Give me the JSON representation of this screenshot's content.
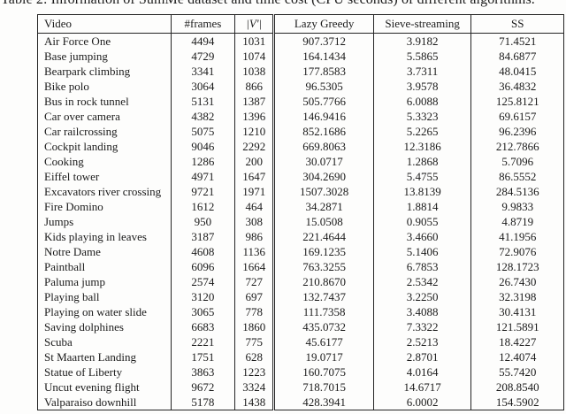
{
  "caption": "Table 2: Information of SumMe dataset and time cost (CPU seconds) of different algorithms.",
  "colors": {
    "text": "#1b1b1b",
    "border": "#242424",
    "background": "#fdfdfc"
  },
  "table": {
    "columns": [
      {
        "key": "video",
        "label": "Video"
      },
      {
        "key": "frames",
        "label": "#frames"
      },
      {
        "key": "v-size",
        "label": "|V′|"
      },
      {
        "key": "lazy-greedy",
        "label": "Lazy Greedy"
      },
      {
        "key": "sieve-streaming",
        "label": "Sieve-streaming"
      },
      {
        "key": "ss",
        "label": "SS"
      }
    ],
    "rows": [
      [
        "Air Force One",
        "4494",
        "1031",
        "907.3712",
        "3.9182",
        "71.4521"
      ],
      [
        "Base jumping",
        "4729",
        "1074",
        "164.1434",
        "5.5865",
        "84.6877"
      ],
      [
        "Bearpark climbing",
        "3341",
        "1038",
        "177.8583",
        "3.7311",
        "48.0415"
      ],
      [
        "Bike polo",
        "3064",
        "866",
        "96.5305",
        "3.9578",
        "36.4832"
      ],
      [
        "Bus in rock tunnel",
        "5131",
        "1387",
        "505.7766",
        "6.0088",
        "125.8121"
      ],
      [
        "Car over camera",
        "4382",
        "1396",
        "146.9416",
        "5.3323",
        "69.6157"
      ],
      [
        "Car railcrossing",
        "5075",
        "1210",
        "852.1686",
        "5.2265",
        "96.2396"
      ],
      [
        "Cockpit landing",
        "9046",
        "2292",
        "669.8063",
        "12.3186",
        "212.7866"
      ],
      [
        "Cooking",
        "1286",
        "200",
        "30.0717",
        "1.2868",
        "5.7096"
      ],
      [
        "Eiffel tower",
        "4971",
        "1647",
        "304.2690",
        "5.4755",
        "86.5552"
      ],
      [
        "Excavators river crossing",
        "9721",
        "1971",
        "1507.3028",
        "13.8139",
        "284.5136"
      ],
      [
        "Fire Domino",
        "1612",
        "464",
        "34.2871",
        "1.8814",
        "9.9833"
      ],
      [
        "Jumps",
        "950",
        "308",
        "15.0508",
        "0.9055",
        "4.8719"
      ],
      [
        "Kids playing in leaves",
        "3187",
        "986",
        "221.4644",
        "3.4660",
        "41.1956"
      ],
      [
        "Notre Dame",
        "4608",
        "1136",
        "169.1235",
        "5.1406",
        "72.9076"
      ],
      [
        "Paintball",
        "6096",
        "1664",
        "763.3255",
        "6.7853",
        "128.1723"
      ],
      [
        "Paluma jump",
        "2574",
        "727",
        "210.8670",
        "2.5342",
        "26.7430"
      ],
      [
        "Playing ball",
        "3120",
        "697",
        "132.7437",
        "3.2250",
        "32.3198"
      ],
      [
        "Playing on water slide",
        "3065",
        "778",
        "111.7358",
        "3.4088",
        "30.4131"
      ],
      [
        "Saving dolphines",
        "6683",
        "1860",
        "435.0732",
        "7.3322",
        "121.5891"
      ],
      [
        "Scuba",
        "2221",
        "775",
        "45.6177",
        "2.5213",
        "18.4227"
      ],
      [
        "St Maarten Landing",
        "1751",
        "628",
        "19.0717",
        "2.8701",
        "12.4074"
      ],
      [
        "Statue of Liberty",
        "3863",
        "1223",
        "160.7075",
        "4.0164",
        "55.7420"
      ],
      [
        "Uncut evening flight",
        "9672",
        "3324",
        "718.7015",
        "14.6717",
        "208.8540"
      ],
      [
        "Valparaiso downhill",
        "5178",
        "1438",
        "428.3941",
        "6.0002",
        "154.5902"
      ]
    ]
  }
}
